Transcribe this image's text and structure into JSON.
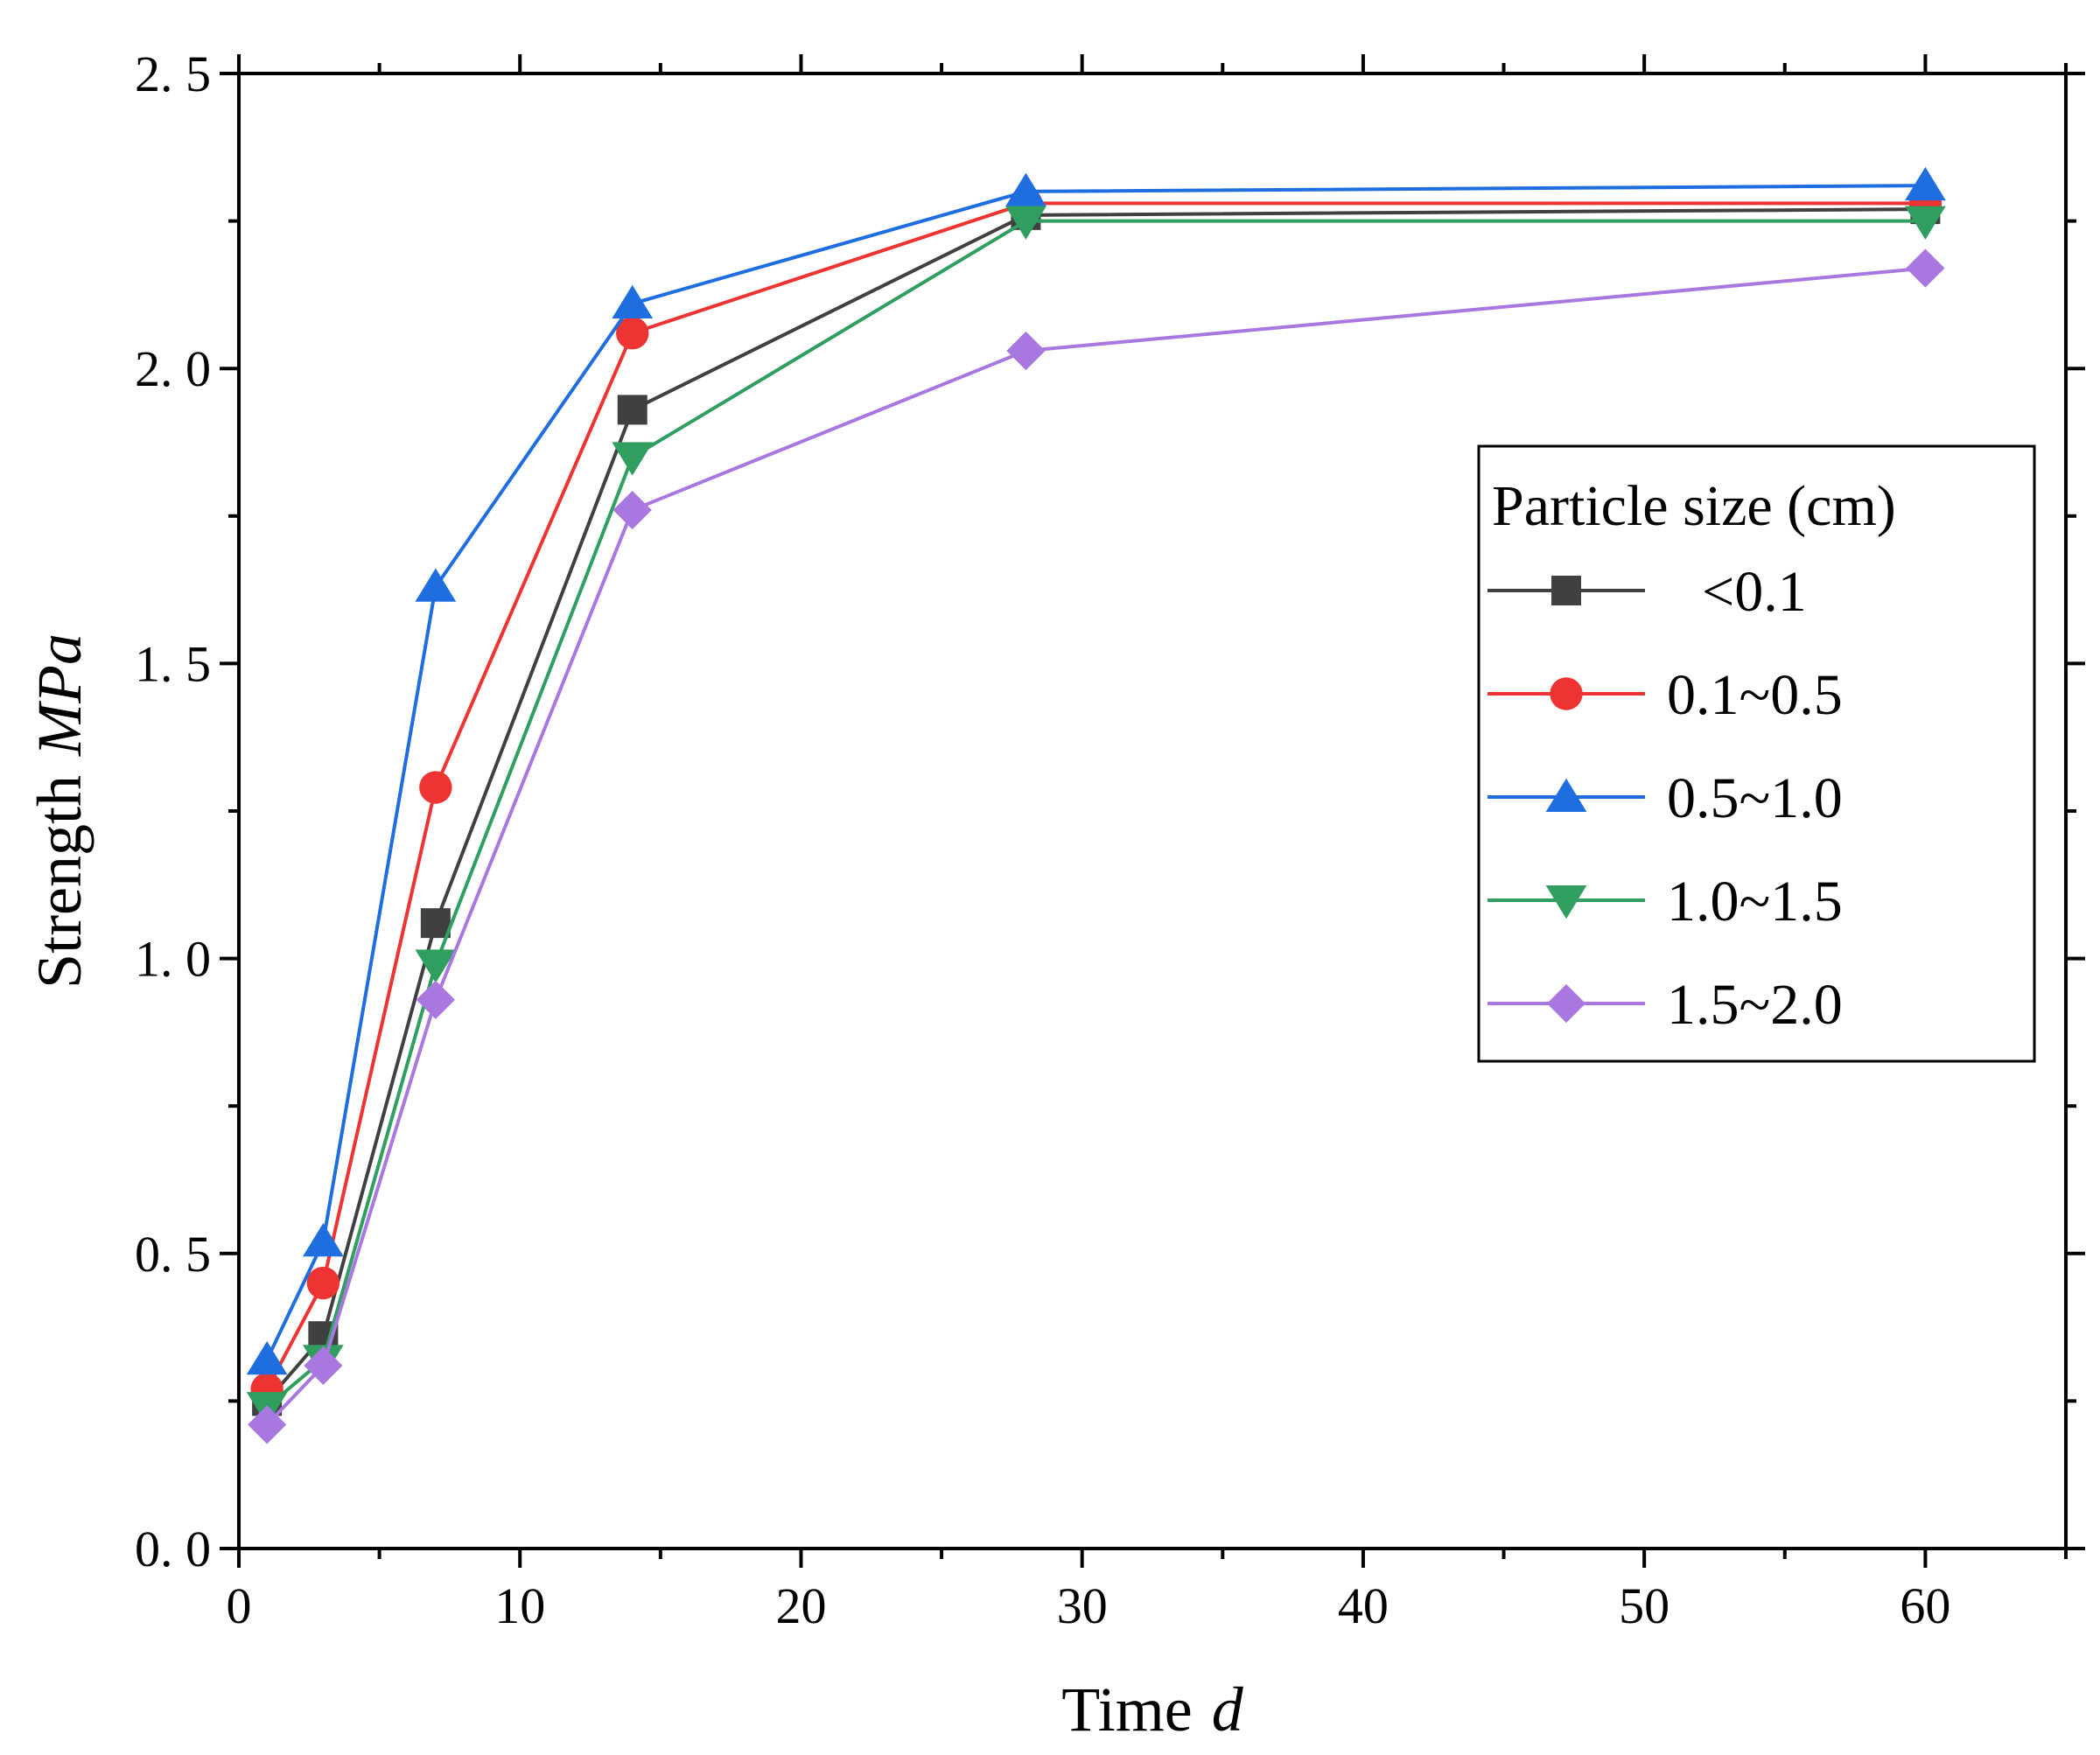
{
  "chart_data": {
    "type": "line",
    "title": "",
    "xlabel": {
      "text": "Time",
      "unit": "d"
    },
    "ylabel": {
      "text": "Strength",
      "unit": "MPa"
    },
    "xlim": [
      0,
      65
    ],
    "ylim": [
      0,
      2.5
    ],
    "x_ticks": [
      0,
      10,
      20,
      30,
      40,
      50,
      60
    ],
    "x_tick_labels": [
      "0",
      "10",
      "20",
      "30",
      "40",
      "50",
      "60"
    ],
    "y_ticks": [
      0.0,
      0.5,
      1.0,
      1.5,
      2.0,
      2.5
    ],
    "y_tick_labels": [
      "0. 0",
      "0. 5",
      "1. 0",
      "1. 5",
      "2. 0",
      "2. 5"
    ],
    "grid": false,
    "legend": {
      "title": "Particle size (cm)",
      "placement": "right"
    },
    "x": [
      1,
      3,
      7,
      14,
      28,
      60
    ],
    "series": [
      {
        "name": "<0.1",
        "marker": "square",
        "color": "#404040",
        "values": [
          0.25,
          0.36,
          1.06,
          1.93,
          2.26,
          2.27
        ]
      },
      {
        "name": "0.1~0.5",
        "marker": "circle",
        "color": "#ee3333",
        "values": [
          0.27,
          0.45,
          1.29,
          2.06,
          2.28,
          2.28
        ]
      },
      {
        "name": "0.5~1.0",
        "marker": "triangle-up",
        "color": "#1f6ee0",
        "values": [
          0.32,
          0.52,
          1.63,
          2.11,
          2.3,
          2.31
        ]
      },
      {
        "name": "1.0~1.5",
        "marker": "triangle-down",
        "color": "#2f9e5f",
        "values": [
          0.24,
          0.32,
          0.99,
          1.85,
          2.25,
          2.25
        ]
      },
      {
        "name": "1.5~2.0",
        "marker": "diamond",
        "color": "#a878e0",
        "values": [
          0.21,
          0.31,
          0.93,
          1.76,
          2.03,
          2.17
        ]
      }
    ]
  }
}
